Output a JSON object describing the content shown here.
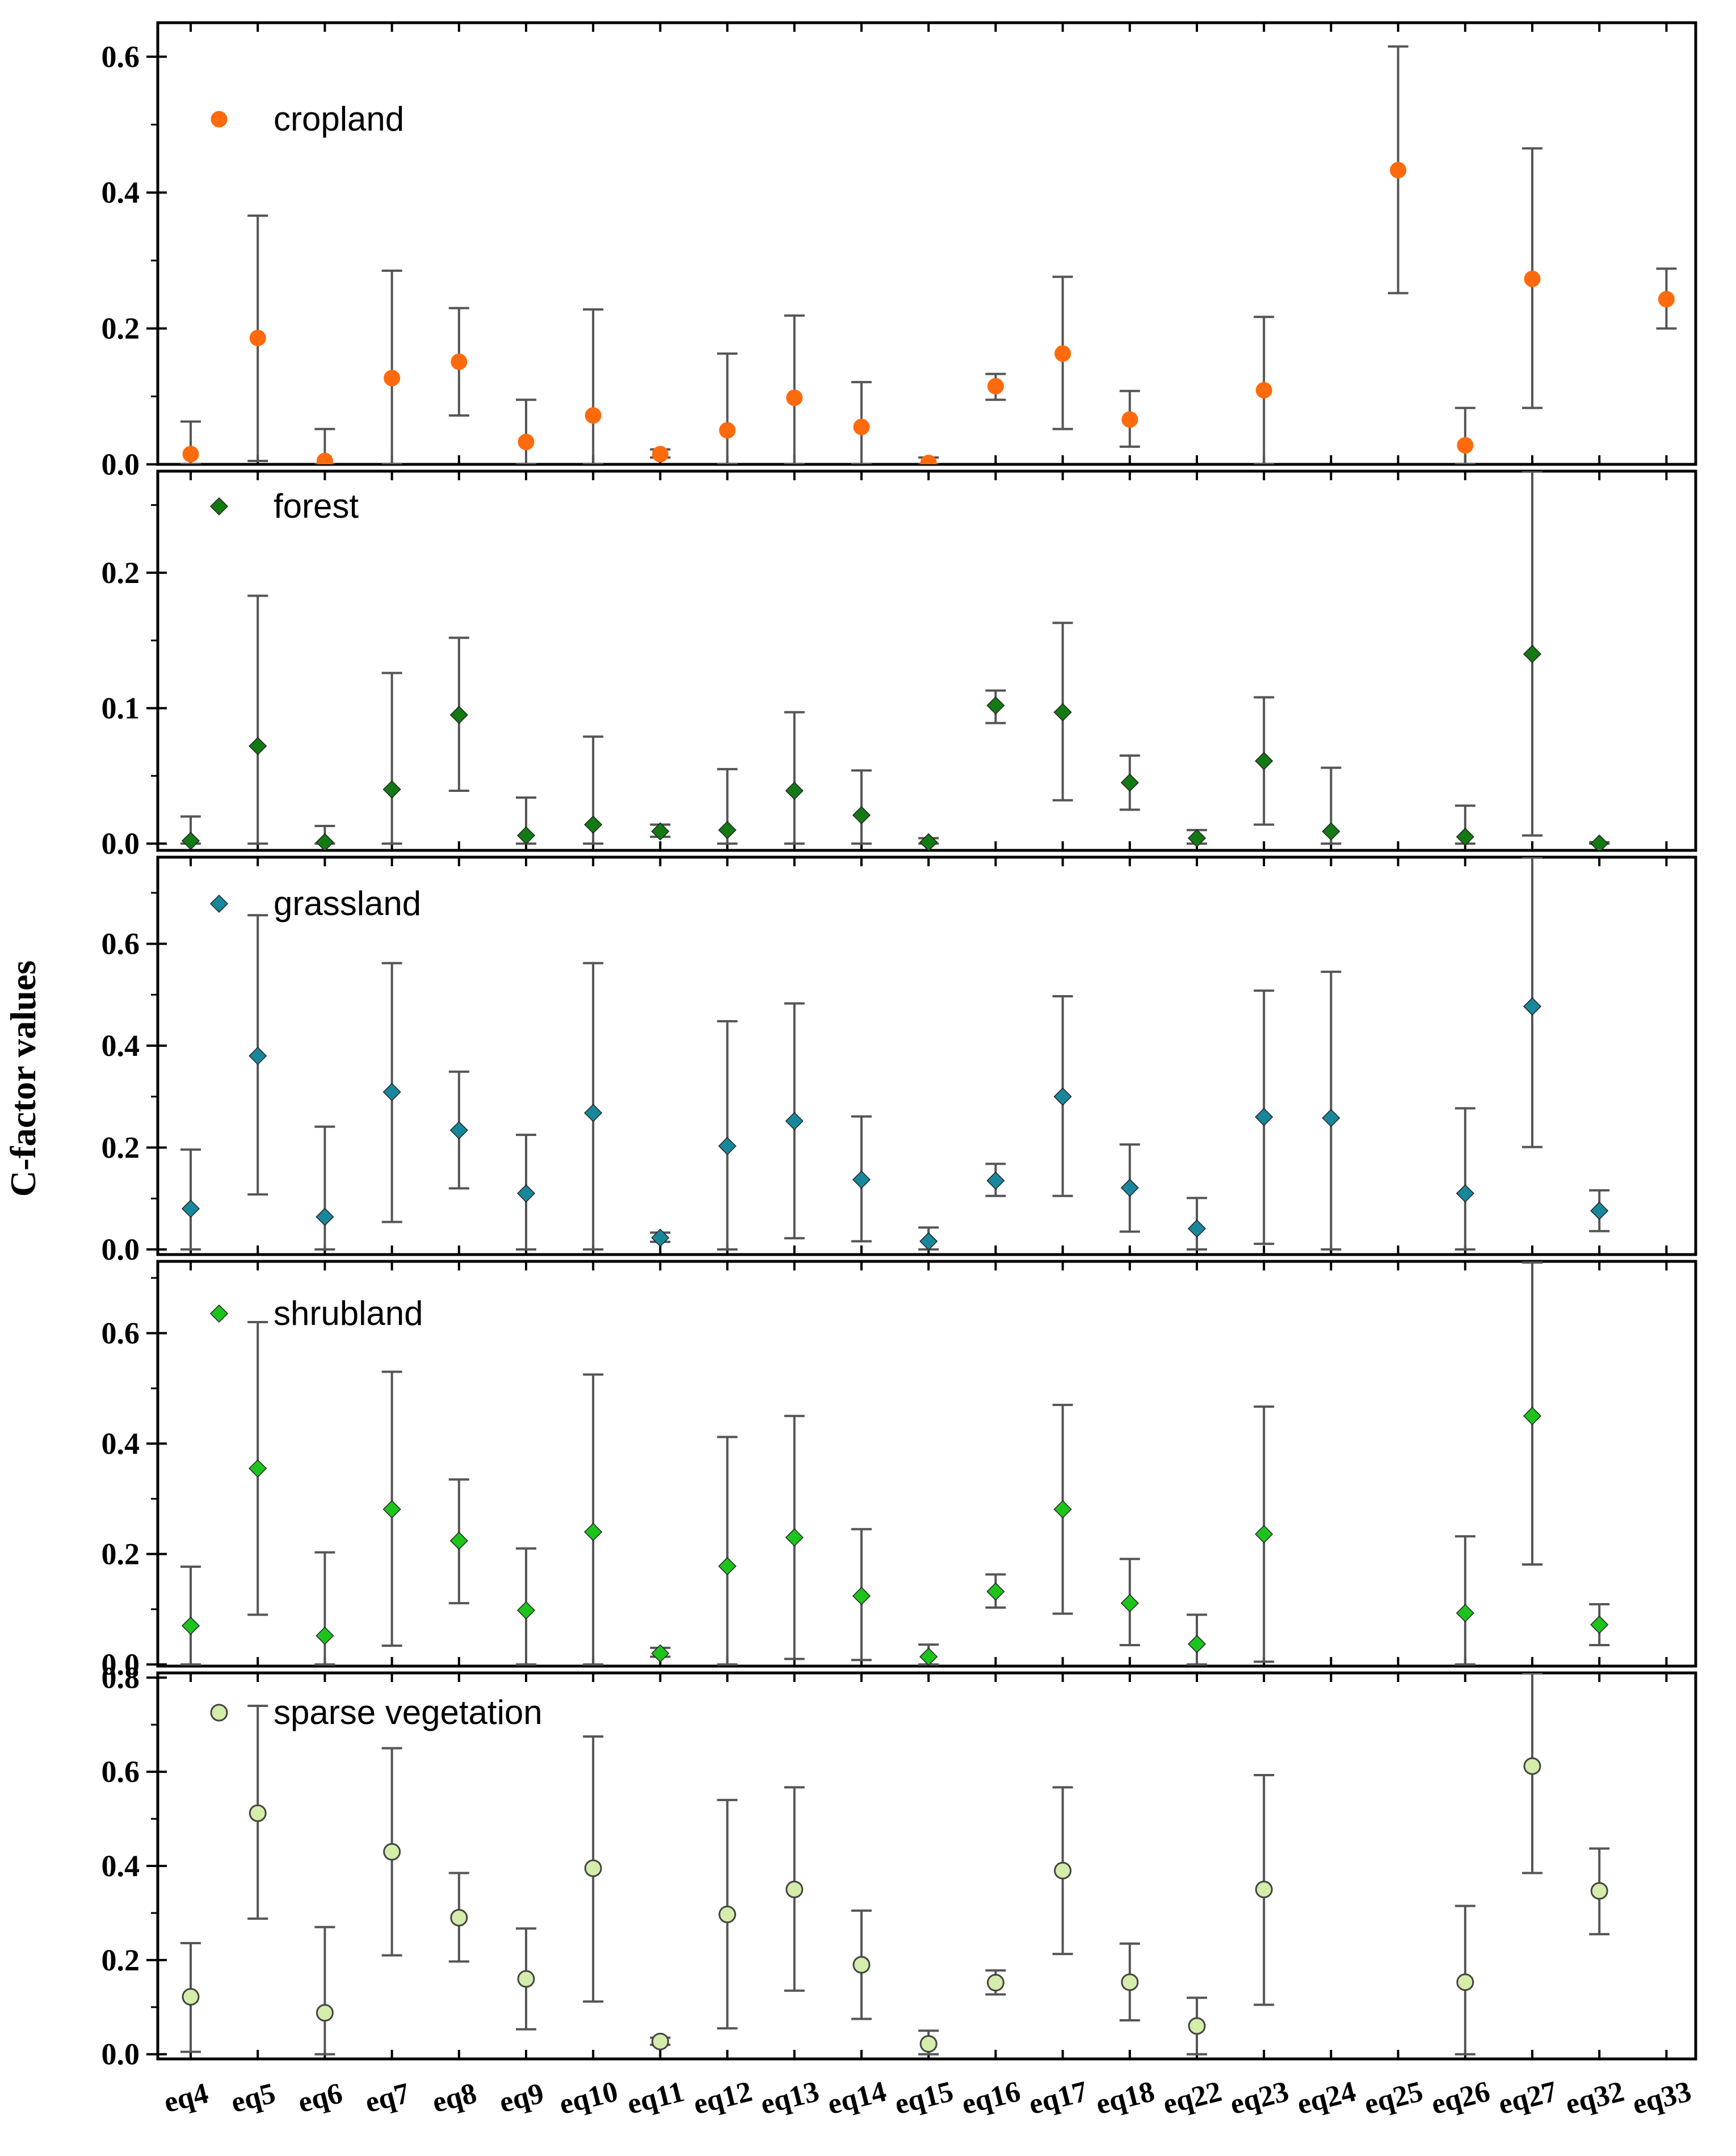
{
  "chart_data": {
    "type": "scatter",
    "ylabel": "C-factor values",
    "categories": [
      "eq4",
      "eq5",
      "eq6",
      "eq7",
      "eq8",
      "eq9",
      "eq10",
      "eq11",
      "eq12",
      "eq13",
      "eq14",
      "eq15",
      "eq16",
      "eq17",
      "eq18",
      "eq22",
      "eq23",
      "eq24",
      "eq25",
      "eq26",
      "eq27",
      "eq32",
      "eq33"
    ],
    "panels": [
      {
        "name": "cropland",
        "color": "#FF6A0D",
        "marker": "circle",
        "ylim": [
          0,
          0.65
        ],
        "yticks": [
          "0.0",
          "0.2",
          "0.4",
          "0.6"
        ],
        "points": [
          {
            "x": "eq4",
            "y": 0.015,
            "lo": 0.0,
            "hi": 0.063
          },
          {
            "x": "eq5",
            "y": 0.186,
            "lo": 0.005,
            "hi": 0.366
          },
          {
            "x": "eq6",
            "y": 0.005,
            "lo": 0.0,
            "hi": 0.052
          },
          {
            "x": "eq7",
            "y": 0.127,
            "lo": 0.0,
            "hi": 0.285
          },
          {
            "x": "eq8",
            "y": 0.151,
            "lo": 0.072,
            "hi": 0.23
          },
          {
            "x": "eq9",
            "y": 0.033,
            "lo": 0.0,
            "hi": 0.095
          },
          {
            "x": "eq10",
            "y": 0.072,
            "lo": 0.0,
            "hi": 0.228
          },
          {
            "x": "eq11",
            "y": 0.015,
            "lo": 0.01,
            "hi": 0.022
          },
          {
            "x": "eq12",
            "y": 0.05,
            "lo": 0.0,
            "hi": 0.163
          },
          {
            "x": "eq13",
            "y": 0.098,
            "lo": 0.0,
            "hi": 0.219
          },
          {
            "x": "eq14",
            "y": 0.055,
            "lo": 0.0,
            "hi": 0.121
          },
          {
            "x": "eq15",
            "y": 0.002,
            "lo": 0.0,
            "hi": 0.01
          },
          {
            "x": "eq16",
            "y": 0.115,
            "lo": 0.095,
            "hi": 0.133
          },
          {
            "x": "eq17",
            "y": 0.163,
            "lo": 0.052,
            "hi": 0.276
          },
          {
            "x": "eq18",
            "y": 0.066,
            "lo": 0.026,
            "hi": 0.108
          },
          {
            "x": "eq23",
            "y": 0.109,
            "lo": 0.0,
            "hi": 0.217
          },
          {
            "x": "eq25",
            "y": 0.433,
            "lo": 0.252,
            "hi": 0.615
          },
          {
            "x": "eq26",
            "y": 0.028,
            "lo": 0.0,
            "hi": 0.083
          },
          {
            "x": "eq27",
            "y": 0.273,
            "lo": 0.083,
            "hi": 0.465
          },
          {
            "x": "eq33",
            "y": 0.243,
            "lo": 0.2,
            "hi": 0.288
          }
        ]
      },
      {
        "name": "forest",
        "color": "#137A13",
        "marker": "diamond",
        "ylim": [
          -0.005,
          0.275
        ],
        "yticks": [
          "0.0",
          "0.1",
          "0.2"
        ],
        "points": [
          {
            "x": "eq4",
            "y": 0.002,
            "lo": 0.0,
            "hi": 0.02
          },
          {
            "x": "eq5",
            "y": 0.072,
            "lo": 0.0,
            "hi": 0.183
          },
          {
            "x": "eq6",
            "y": 0.001,
            "lo": 0.0,
            "hi": 0.013
          },
          {
            "x": "eq7",
            "y": 0.04,
            "lo": 0.0,
            "hi": 0.126
          },
          {
            "x": "eq8",
            "y": 0.095,
            "lo": 0.039,
            "hi": 0.152
          },
          {
            "x": "eq9",
            "y": 0.006,
            "lo": 0.0,
            "hi": 0.034
          },
          {
            "x": "eq10",
            "y": 0.014,
            "lo": 0.0,
            "hi": 0.079
          },
          {
            "x": "eq11",
            "y": 0.009,
            "lo": 0.005,
            "hi": 0.014
          },
          {
            "x": "eq12",
            "y": 0.01,
            "lo": 0.0,
            "hi": 0.055
          },
          {
            "x": "eq13",
            "y": 0.039,
            "lo": 0.0,
            "hi": 0.097
          },
          {
            "x": "eq14",
            "y": 0.021,
            "lo": 0.0,
            "hi": 0.054
          },
          {
            "x": "eq15",
            "y": 0.001,
            "lo": 0.0,
            "hi": 0.004
          },
          {
            "x": "eq16",
            "y": 0.102,
            "lo": 0.089,
            "hi": 0.113
          },
          {
            "x": "eq17",
            "y": 0.097,
            "lo": 0.032,
            "hi": 0.163
          },
          {
            "x": "eq18",
            "y": 0.045,
            "lo": 0.025,
            "hi": 0.065
          },
          {
            "x": "eq22",
            "y": 0.004,
            "lo": 0.0,
            "hi": 0.01
          },
          {
            "x": "eq23",
            "y": 0.061,
            "lo": 0.014,
            "hi": 0.108
          },
          {
            "x": "eq24",
            "y": 0.009,
            "lo": 0.0,
            "hi": 0.056
          },
          {
            "x": "eq26",
            "y": 0.005,
            "lo": 0.0,
            "hi": 0.028
          },
          {
            "x": "eq27",
            "y": 0.14,
            "lo": 0.006,
            "hi": 0.275
          },
          {
            "x": "eq32",
            "y": 0.0,
            "lo": 0.0,
            "hi": 0.001
          }
        ]
      },
      {
        "name": "grassland",
        "color": "#19879B",
        "marker": "diamond",
        "ylim": [
          -0.01,
          0.77
        ],
        "yticks": [
          "0.0",
          "0.2",
          "0.4",
          "0.6"
        ],
        "points": [
          {
            "x": "eq4",
            "y": 0.08,
            "lo": 0.0,
            "hi": 0.196
          },
          {
            "x": "eq5",
            "y": 0.38,
            "lo": 0.108,
            "hi": 0.656
          },
          {
            "x": "eq6",
            "y": 0.064,
            "lo": 0.0,
            "hi": 0.241
          },
          {
            "x": "eq7",
            "y": 0.309,
            "lo": 0.054,
            "hi": 0.562
          },
          {
            "x": "eq8",
            "y": 0.234,
            "lo": 0.12,
            "hi": 0.349
          },
          {
            "x": "eq9",
            "y": 0.11,
            "lo": 0.0,
            "hi": 0.225
          },
          {
            "x": "eq10",
            "y": 0.268,
            "lo": 0.0,
            "hi": 0.562
          },
          {
            "x": "eq11",
            "y": 0.023,
            "lo": 0.015,
            "hi": 0.033
          },
          {
            "x": "eq12",
            "y": 0.203,
            "lo": 0.0,
            "hi": 0.448
          },
          {
            "x": "eq13",
            "y": 0.252,
            "lo": 0.022,
            "hi": 0.483
          },
          {
            "x": "eq14",
            "y": 0.137,
            "lo": 0.016,
            "hi": 0.261
          },
          {
            "x": "eq15",
            "y": 0.016,
            "lo": 0.0,
            "hi": 0.043
          },
          {
            "x": "eq16",
            "y": 0.135,
            "lo": 0.105,
            "hi": 0.168
          },
          {
            "x": "eq17",
            "y": 0.3,
            "lo": 0.105,
            "hi": 0.497
          },
          {
            "x": "eq18",
            "y": 0.121,
            "lo": 0.035,
            "hi": 0.206
          },
          {
            "x": "eq22",
            "y": 0.041,
            "lo": 0.0,
            "hi": 0.101
          },
          {
            "x": "eq23",
            "y": 0.26,
            "lo": 0.011,
            "hi": 0.508
          },
          {
            "x": "eq24",
            "y": 0.258,
            "lo": 0.0,
            "hi": 0.545
          },
          {
            "x": "eq26",
            "y": 0.11,
            "lo": 0.0,
            "hi": 0.277
          },
          {
            "x": "eq27",
            "y": 0.477,
            "lo": 0.201,
            "hi": 0.77
          },
          {
            "x": "eq32",
            "y": 0.076,
            "lo": 0.036,
            "hi": 0.116
          }
        ]
      },
      {
        "name": "shrubland",
        "color": "#1CC41C",
        "marker": "diamond",
        "ylim": [
          -0.003,
          0.73
        ],
        "yticks": [
          "0.0",
          "0.2",
          "0.4",
          "0.6"
        ],
        "points": [
          {
            "x": "eq4",
            "y": 0.07,
            "lo": 0.0,
            "hi": 0.177
          },
          {
            "x": "eq5",
            "y": 0.355,
            "lo": 0.09,
            "hi": 0.62
          },
          {
            "x": "eq6",
            "y": 0.052,
            "lo": 0.0,
            "hi": 0.203
          },
          {
            "x": "eq7",
            "y": 0.281,
            "lo": 0.034,
            "hi": 0.53
          },
          {
            "x": "eq8",
            "y": 0.224,
            "lo": 0.111,
            "hi": 0.335
          },
          {
            "x": "eq9",
            "y": 0.098,
            "lo": 0.0,
            "hi": 0.21
          },
          {
            "x": "eq10",
            "y": 0.24,
            "lo": 0.0,
            "hi": 0.525
          },
          {
            "x": "eq11",
            "y": 0.02,
            "lo": 0.014,
            "hi": 0.03
          },
          {
            "x": "eq12",
            "y": 0.178,
            "lo": 0.0,
            "hi": 0.412
          },
          {
            "x": "eq13",
            "y": 0.23,
            "lo": 0.01,
            "hi": 0.45
          },
          {
            "x": "eq14",
            "y": 0.124,
            "lo": 0.008,
            "hi": 0.245
          },
          {
            "x": "eq15",
            "y": 0.014,
            "lo": 0.0,
            "hi": 0.036
          },
          {
            "x": "eq16",
            "y": 0.132,
            "lo": 0.103,
            "hi": 0.163
          },
          {
            "x": "eq17",
            "y": 0.281,
            "lo": 0.092,
            "hi": 0.47
          },
          {
            "x": "eq18",
            "y": 0.111,
            "lo": 0.035,
            "hi": 0.191
          },
          {
            "x": "eq22",
            "y": 0.037,
            "lo": 0.0,
            "hi": 0.09
          },
          {
            "x": "eq23",
            "y": 0.236,
            "lo": 0.005,
            "hi": 0.467
          },
          {
            "x": "eq26",
            "y": 0.093,
            "lo": 0.0,
            "hi": 0.232
          },
          {
            "x": "eq27",
            "y": 0.45,
            "lo": 0.181,
            "hi": 0.728
          },
          {
            "x": "eq32",
            "y": 0.072,
            "lo": 0.035,
            "hi": 0.109
          }
        ]
      },
      {
        "name": "sparse vegetation",
        "color": "#D4EDAA",
        "marker": "circle",
        "ylim": [
          -0.01,
          0.81
        ],
        "yticks": [
          "0.0",
          "0.2",
          "0.4",
          "0.6",
          "0.8"
        ],
        "points": [
          {
            "x": "eq4",
            "y": 0.122,
            "lo": 0.005,
            "hi": 0.236
          },
          {
            "x": "eq5",
            "y": 0.512,
            "lo": 0.288,
            "hi": 0.74
          },
          {
            "x": "eq6",
            "y": 0.088,
            "lo": 0.0,
            "hi": 0.27
          },
          {
            "x": "eq7",
            "y": 0.43,
            "lo": 0.21,
            "hi": 0.65
          },
          {
            "x": "eq8",
            "y": 0.29,
            "lo": 0.197,
            "hi": 0.385
          },
          {
            "x": "eq9",
            "y": 0.16,
            "lo": 0.053,
            "hi": 0.267
          },
          {
            "x": "eq10",
            "y": 0.395,
            "lo": 0.112,
            "hi": 0.675
          },
          {
            "x": "eq11",
            "y": 0.027,
            "lo": 0.02,
            "hi": 0.035
          },
          {
            "x": "eq12",
            "y": 0.297,
            "lo": 0.055,
            "hi": 0.54
          },
          {
            "x": "eq13",
            "y": 0.35,
            "lo": 0.135,
            "hi": 0.567
          },
          {
            "x": "eq14",
            "y": 0.19,
            "lo": 0.075,
            "hi": 0.305
          },
          {
            "x": "eq15",
            "y": 0.022,
            "lo": 0.0,
            "hi": 0.05
          },
          {
            "x": "eq16",
            "y": 0.152,
            "lo": 0.127,
            "hi": 0.178
          },
          {
            "x": "eq17",
            "y": 0.39,
            "lo": 0.213,
            "hi": 0.567
          },
          {
            "x": "eq18",
            "y": 0.153,
            "lo": 0.072,
            "hi": 0.235
          },
          {
            "x": "eq22",
            "y": 0.06,
            "lo": 0.0,
            "hi": 0.12
          },
          {
            "x": "eq23",
            "y": 0.35,
            "lo": 0.105,
            "hi": 0.593
          },
          {
            "x": "eq26",
            "y": 0.153,
            "lo": 0.0,
            "hi": 0.315
          },
          {
            "x": "eq27",
            "y": 0.612,
            "lo": 0.385,
            "hi": 0.81
          },
          {
            "x": "eq32",
            "y": 0.347,
            "lo": 0.255,
            "hi": 0.437
          }
        ]
      }
    ]
  }
}
